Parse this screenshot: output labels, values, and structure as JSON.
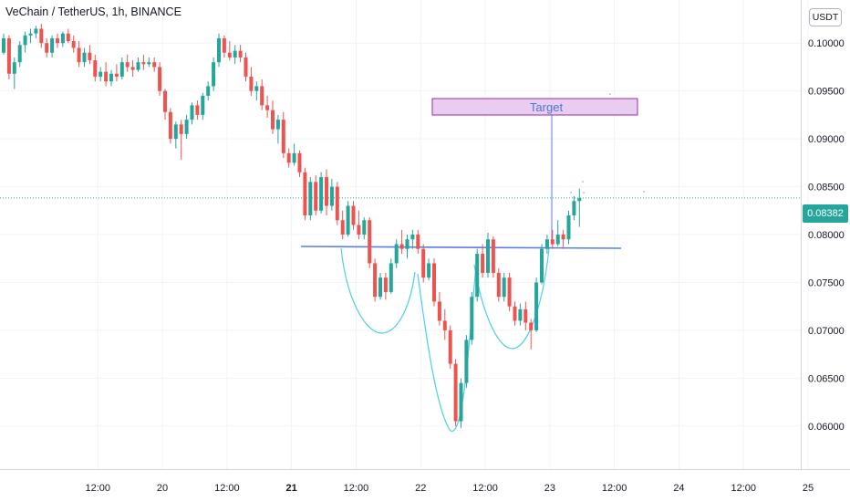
{
  "header": {
    "title": "VeChain / TetherUS, 1h, BINANCE"
  },
  "axis": {
    "currency": "USDT",
    "last_price": "0.08382"
  },
  "colors": {
    "up": "#26a69a",
    "down": "#ef5350",
    "grid": "#f0f3fa",
    "neckline": "#5b7fe0",
    "pattern": "#4dd0e1",
    "target_fill": "#e8cdee",
    "target_border": "#9c27b0",
    "target_text": "#4a74e0",
    "last_price_line": "#26a69a"
  },
  "chart_data": {
    "type": "candlestick",
    "title": "VeChain / TetherUS, 1h, BINANCE",
    "ylim": [
      0.0555,
      0.1045
    ],
    "y_ticks": [
      "0.10000",
      "0.09500",
      "0.09000",
      "0.08500",
      "0.08000",
      "0.07500",
      "0.07000",
      "0.06500",
      "0.06000"
    ],
    "y_tick_values": [
      0.1,
      0.095,
      0.09,
      0.085,
      0.08,
      0.075,
      0.07,
      0.065,
      0.06
    ],
    "x_ticks": [
      {
        "label": "12:00",
        "t": 17.5,
        "bold": false
      },
      {
        "label": "20",
        "t": 29.5,
        "bold": false
      },
      {
        "label": "12:00",
        "t": 41.5,
        "bold": false
      },
      {
        "label": "21",
        "t": 53.5,
        "bold": true
      },
      {
        "label": "12:00",
        "t": 65.5,
        "bold": false
      },
      {
        "label": "22",
        "t": 77.5,
        "bold": false
      },
      {
        "label": "12:00",
        "t": 89.5,
        "bold": false
      },
      {
        "label": "23",
        "t": 101.5,
        "bold": false
      },
      {
        "label": "12:00",
        "t": 113.5,
        "bold": false
      },
      {
        "label": "24",
        "t": 125.5,
        "bold": false
      },
      {
        "label": "12:00",
        "t": 137.5,
        "bold": false
      },
      {
        "label": "25",
        "t": 149.5,
        "bold": false
      }
    ],
    "last_price": 0.08382,
    "candles": [
      [
        0.099,
        0.101,
        0.0988,
        0.1005
      ],
      [
        0.1005,
        0.1008,
        0.0962,
        0.0968
      ],
      [
        0.0968,
        0.0985,
        0.0952,
        0.098
      ],
      [
        0.098,
        0.1002,
        0.0975,
        0.0998
      ],
      [
        0.0998,
        0.1012,
        0.099,
        0.1008
      ],
      [
        0.1008,
        0.1015,
        0.1,
        0.101
      ],
      [
        0.101,
        0.1018,
        0.1005,
        0.1015
      ],
      [
        0.1015,
        0.102,
        0.0995,
        0.1
      ],
      [
        0.1,
        0.1005,
        0.0985,
        0.099
      ],
      [
        0.099,
        0.1008,
        0.0985,
        0.1005
      ],
      [
        0.1005,
        0.101,
        0.0995,
        0.1
      ],
      [
        0.1,
        0.1012,
        0.0996,
        0.101
      ],
      [
        0.101,
        0.1015,
        0.1,
        0.1002
      ],
      [
        0.1002,
        0.1008,
        0.099,
        0.0995
      ],
      [
        0.0995,
        0.1002,
        0.0975,
        0.098
      ],
      [
        0.098,
        0.0995,
        0.0975,
        0.099
      ],
      [
        0.099,
        0.0998,
        0.0978,
        0.0982
      ],
      [
        0.0982,
        0.0988,
        0.096,
        0.0965
      ],
      [
        0.0965,
        0.0975,
        0.096,
        0.097
      ],
      [
        0.097,
        0.098,
        0.0955,
        0.096
      ],
      [
        0.096,
        0.0972,
        0.0955,
        0.0968
      ],
      [
        0.0968,
        0.0978,
        0.096,
        0.0965
      ],
      [
        0.0965,
        0.0985,
        0.0962,
        0.098
      ],
      [
        0.098,
        0.0988,
        0.097,
        0.0975
      ],
      [
        0.0975,
        0.0982,
        0.0965,
        0.0972
      ],
      [
        0.0972,
        0.0985,
        0.097,
        0.098
      ],
      [
        0.098,
        0.0988,
        0.0972,
        0.0978
      ],
      [
        0.0978,
        0.0985,
        0.0975,
        0.098
      ],
      [
        0.098,
        0.0985,
        0.097,
        0.0975
      ],
      [
        0.0975,
        0.098,
        0.0945,
        0.095
      ],
      [
        0.095,
        0.0952,
        0.092,
        0.0928
      ],
      [
        0.0928,
        0.0932,
        0.0895,
        0.09
      ],
      [
        0.09,
        0.0918,
        0.089,
        0.0915
      ],
      [
        0.0915,
        0.092,
        0.0878,
        0.0905
      ],
      [
        0.0905,
        0.0925,
        0.09,
        0.092
      ],
      [
        0.092,
        0.0938,
        0.0915,
        0.0935
      ],
      [
        0.0935,
        0.094,
        0.092,
        0.0925
      ],
      [
        0.0925,
        0.0948,
        0.092,
        0.0945
      ],
      [
        0.0945,
        0.096,
        0.094,
        0.0955
      ],
      [
        0.0955,
        0.0985,
        0.095,
        0.098
      ],
      [
        0.098,
        0.101,
        0.0975,
        0.1005
      ],
      [
        0.1005,
        0.1008,
        0.0985,
        0.099
      ],
      [
        0.099,
        0.1002,
        0.0982,
        0.0985
      ],
      [
        0.0985,
        0.0998,
        0.0978,
        0.0992
      ],
      [
        0.0992,
        0.0998,
        0.098,
        0.0985
      ],
      [
        0.0985,
        0.099,
        0.096,
        0.0965
      ],
      [
        0.0965,
        0.0975,
        0.0945,
        0.095
      ],
      [
        0.095,
        0.096,
        0.094,
        0.0955
      ],
      [
        0.0955,
        0.0962,
        0.093,
        0.0935
      ],
      [
        0.0935,
        0.0945,
        0.0922,
        0.093
      ],
      [
        0.093,
        0.094,
        0.0905,
        0.091
      ],
      [
        0.091,
        0.0925,
        0.0895,
        0.092
      ],
      [
        0.092,
        0.0928,
        0.088,
        0.0885
      ],
      [
        0.0885,
        0.089,
        0.087,
        0.0875
      ],
      [
        0.0875,
        0.0895,
        0.0872,
        0.0885
      ],
      [
        0.0885,
        0.0888,
        0.086,
        0.0865
      ],
      [
        0.0865,
        0.087,
        0.0815,
        0.082
      ],
      [
        0.082,
        0.086,
        0.0815,
        0.0855
      ],
      [
        0.0855,
        0.0862,
        0.082,
        0.0825
      ],
      [
        0.0825,
        0.0865,
        0.0822,
        0.086
      ],
      [
        0.086,
        0.0868,
        0.082,
        0.083
      ],
      [
        0.083,
        0.0858,
        0.0825,
        0.085
      ],
      [
        0.085,
        0.0855,
        0.081,
        0.0815
      ],
      [
        0.0815,
        0.0825,
        0.0795,
        0.08
      ],
      [
        0.08,
        0.0835,
        0.0798,
        0.083
      ],
      [
        0.083,
        0.0835,
        0.0805,
        0.081
      ],
      [
        0.081,
        0.0825,
        0.0795,
        0.08
      ],
      [
        0.08,
        0.0818,
        0.0795,
        0.0815
      ],
      [
        0.0815,
        0.0818,
        0.0765,
        0.077
      ],
      [
        0.077,
        0.0775,
        0.073,
        0.0735
      ],
      [
        0.0735,
        0.076,
        0.0732,
        0.0755
      ],
      [
        0.0755,
        0.076,
        0.0732,
        0.074
      ],
      [
        0.074,
        0.0775,
        0.0738,
        0.077
      ],
      [
        0.077,
        0.0795,
        0.0765,
        0.079
      ],
      [
        0.079,
        0.0805,
        0.078,
        0.0785
      ],
      [
        0.0785,
        0.08,
        0.0775,
        0.0795
      ],
      [
        0.0795,
        0.0805,
        0.0785,
        0.08
      ],
      [
        0.08,
        0.0805,
        0.078,
        0.0785
      ],
      [
        0.0785,
        0.079,
        0.075,
        0.0755
      ],
      [
        0.0755,
        0.0775,
        0.0752,
        0.077
      ],
      [
        0.077,
        0.0775,
        0.0725,
        0.073
      ],
      [
        0.073,
        0.074,
        0.0705,
        0.071
      ],
      [
        0.071,
        0.0722,
        0.069,
        0.07
      ],
      [
        0.07,
        0.0705,
        0.066,
        0.0665
      ],
      [
        0.0665,
        0.067,
        0.06,
        0.0605
      ],
      [
        0.0605,
        0.065,
        0.0598,
        0.0645
      ],
      [
        0.0645,
        0.0695,
        0.064,
        0.069
      ],
      [
        0.069,
        0.074,
        0.0685,
        0.0735
      ],
      [
        0.0735,
        0.0785,
        0.073,
        0.078
      ],
      [
        0.078,
        0.079,
        0.0755,
        0.076
      ],
      [
        0.076,
        0.0802,
        0.0755,
        0.0795
      ],
      [
        0.0795,
        0.0798,
        0.0755,
        0.076
      ],
      [
        0.076,
        0.0765,
        0.073,
        0.0735
      ],
      [
        0.0735,
        0.076,
        0.073,
        0.0755
      ],
      [
        0.0755,
        0.076,
        0.072,
        0.0725
      ],
      [
        0.0725,
        0.073,
        0.0705,
        0.071
      ],
      [
        0.071,
        0.0728,
        0.0705,
        0.0722
      ],
      [
        0.0722,
        0.073,
        0.07,
        0.0708
      ],
      [
        0.0708,
        0.0712,
        0.068,
        0.07
      ],
      [
        0.07,
        0.0755,
        0.0698,
        0.075
      ],
      [
        0.075,
        0.079,
        0.0748,
        0.0785
      ],
      [
        0.0785,
        0.08,
        0.078,
        0.0795
      ],
      [
        0.0795,
        0.0805,
        0.0785,
        0.079
      ],
      [
        0.079,
        0.0815,
        0.0788,
        0.08
      ],
      [
        0.08,
        0.0805,
        0.0785,
        0.0795
      ],
      [
        0.0795,
        0.0825,
        0.079,
        0.082
      ],
      [
        0.082,
        0.084,
        0.0815,
        0.0835
      ],
      [
        0.0835,
        0.0848,
        0.0808,
        0.0838
      ]
    ]
  }
}
